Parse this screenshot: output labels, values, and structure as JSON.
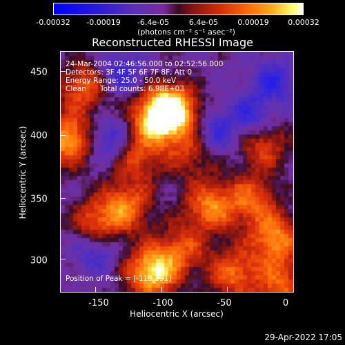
{
  "colorbar": {
    "ticks": [
      "-0.00032",
      "-0.00019",
      "-6.4e-05",
      "6.4e-05",
      "0.00019",
      "0.00032"
    ],
    "unit": "(photons cm⁻² s⁻¹ asec⁻²)"
  },
  "chart_data": {
    "type": "heatmap",
    "title": "Reconstructed RHESSI Image",
    "xlabel": "Heliocentric X (arcsec)",
    "ylabel": "Heliocentric Y (arcsec)",
    "xlim": [
      -188,
      8
    ],
    "ylim": [
      272,
      470
    ],
    "x_ticks": [
      "-150",
      "-100",
      "-50",
      "0"
    ],
    "y_ticks": [
      "300",
      "350",
      "400",
      "450"
    ],
    "x_tick_values": [
      -150,
      -100,
      -50,
      0
    ],
    "y_tick_values": [
      300,
      350,
      400,
      450
    ],
    "color_range": [
      -0.00032,
      0.00032
    ],
    "annotations": {
      "time": "24-Mar-2004 02:46:56.000 to 02:52:56.000",
      "detectors": "Detectors: 3F 4F 5F 6F 7F 8F, Att 0",
      "energy": "Energy Range: 25.0 - 50.0 keV",
      "clean": "Clean",
      "counts": "Total counts: 6.98E+03",
      "peak": "Position of Peak = [-113,291]"
    },
    "hotspots": [
      {
        "x": -108,
        "y": 418,
        "intensity": 1.0
      },
      {
        "x": -95,
        "y": 425,
        "intensity": 0.8
      },
      {
        "x": -183,
        "y": 400,
        "intensity": 0.85
      },
      {
        "x": -113,
        "y": 291,
        "intensity": 1.0
      },
      {
        "x": -65,
        "y": 345,
        "intensity": 0.7
      },
      {
        "x": -135,
        "y": 345,
        "intensity": 0.65
      },
      {
        "x": -160,
        "y": 330,
        "intensity": 0.6
      },
      {
        "x": -10,
        "y": 318,
        "intensity": 0.75
      },
      {
        "x": -30,
        "y": 350,
        "intensity": 0.6
      },
      {
        "x": -170,
        "y": 443,
        "intensity": 0.6
      },
      {
        "x": -45,
        "y": 290,
        "intensity": 0.65
      },
      {
        "x": -5,
        "y": 280,
        "intensity": 0.6
      },
      {
        "x": -80,
        "y": 390,
        "intensity": 0.45
      },
      {
        "x": -125,
        "y": 385,
        "intensity": 0.5
      },
      {
        "x": -20,
        "y": 395,
        "intensity": 0.5
      },
      {
        "x": -88,
        "y": 310,
        "intensity": 0.5
      }
    ],
    "coldspots": [
      {
        "x": -150,
        "y": 400
      },
      {
        "x": -10,
        "y": 448
      },
      {
        "x": -30,
        "y": 420
      },
      {
        "x": -60,
        "y": 405
      },
      {
        "x": -140,
        "y": 455
      },
      {
        "x": -160,
        "y": 310
      }
    ]
  },
  "footer": {
    "timestamp": "29-Apr-2022 17:05"
  }
}
